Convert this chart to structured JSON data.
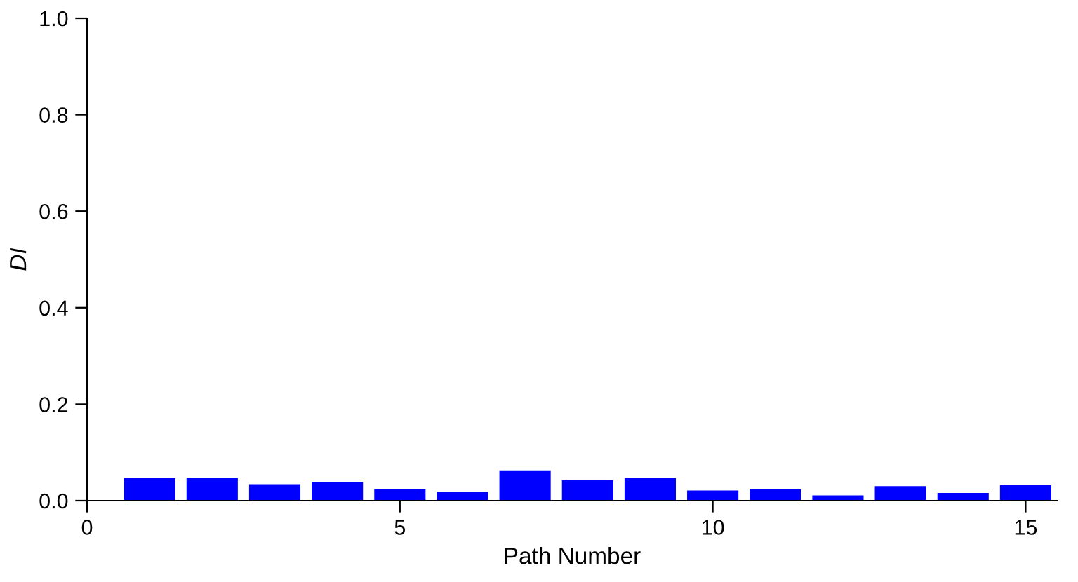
{
  "chart_data": {
    "type": "bar",
    "xlabel": "Path Number",
    "ylabel": "DI",
    "x": [
      1,
      2,
      3,
      4,
      5,
      6,
      7,
      8,
      9,
      10,
      11,
      12,
      13,
      14,
      15
    ],
    "values": [
      0.047,
      0.048,
      0.034,
      0.039,
      0.024,
      0.019,
      0.063,
      0.042,
      0.047,
      0.021,
      0.024,
      0.011,
      0.03,
      0.016,
      0.032
    ],
    "color": "#0000ff",
    "xlim": [
      0,
      15.5
    ],
    "xticks": [
      0,
      5,
      10,
      15
    ],
    "ylim": [
      0,
      1.0
    ],
    "yticks": [
      {
        "value": 0,
        "label": "0.0"
      },
      {
        "value": 0.2,
        "label": "0.2"
      },
      {
        "value": 0.4,
        "label": "0.4"
      },
      {
        "value": 0.6,
        "label": "0.6"
      },
      {
        "value": 0.8,
        "label": "0.8"
      },
      {
        "value": 1.0,
        "label": "1.0"
      }
    ],
    "grid": false,
    "legend": false
  }
}
